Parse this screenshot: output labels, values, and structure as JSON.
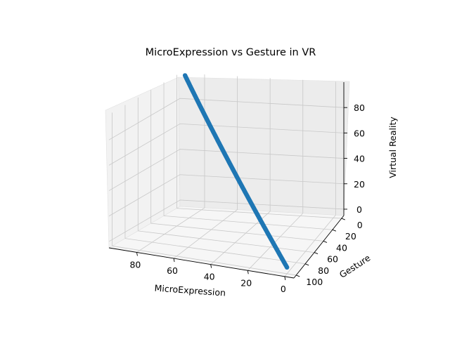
{
  "chart_data": {
    "type": "scatter",
    "title": "MicroExpression vs Gesture in VR",
    "xlabel": "MicroExpression",
    "ylabel": "Gesture",
    "zlabel": "Virtual Reality",
    "xlim": [
      -5,
      95
    ],
    "ylim": [
      -5,
      105
    ],
    "zlim": [
      -5,
      100
    ],
    "xticks": [
      "0",
      "20",
      "40",
      "60",
      "80"
    ],
    "yticks": [
      "0",
      "20",
      "40",
      "60",
      "80",
      "100"
    ],
    "zticks": [
      "0",
      "20",
      "40",
      "60",
      "80"
    ],
    "grid": true,
    "color": "#1f77b4",
    "points": {
      "description_free_sampling": true,
      "x_start": 0,
      "x_end": 90,
      "y_start": 100,
      "y_end": 0,
      "z_start": 0,
      "z_end": 100
    }
  }
}
